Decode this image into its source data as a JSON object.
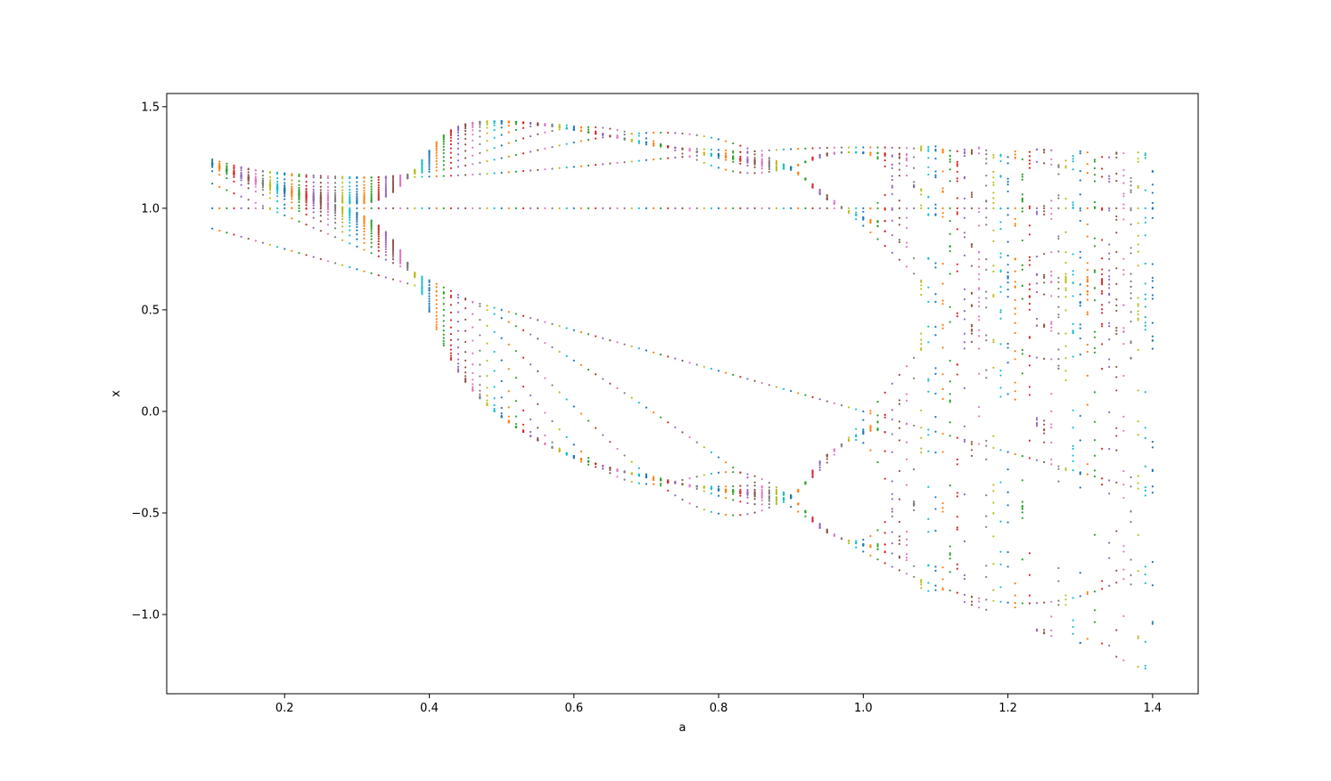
{
  "chart_data": {
    "type": "scatter",
    "title": "",
    "xlabel": "a",
    "ylabel": "x",
    "xlim": [
      0.037,
      1.463
    ],
    "ylim": [
      -1.39,
      1.565
    ],
    "grid": false,
    "legend": "none",
    "x_ticks": [
      0.2,
      0.4,
      0.6,
      0.8,
      1.0,
      1.2,
      1.4
    ],
    "x_tick_labels": [
      "0.2",
      "0.4",
      "0.6",
      "0.8",
      "1.0",
      "1.2",
      "1.4"
    ],
    "y_ticks": [
      -1.0,
      -0.5,
      0.0,
      0.5,
      1.0,
      1.5
    ],
    "y_tick_labels": [
      "−1.0",
      "−0.5",
      "0.0",
      "0.5",
      "1.0",
      "1.5"
    ],
    "a_range": [
      0.1,
      1.4
    ],
    "a_step": 0.01,
    "series_note": "one series per value of a, colored by cycling the default palette",
    "palette": [
      "#1f77b4",
      "#ff7f0e",
      "#2ca02c",
      "#d62728",
      "#9467bd",
      "#8c564b",
      "#e377c2",
      "#7f7f7f",
      "#bcbd22",
      "#17becf"
    ],
    "iteration_map": "x_{n+1} = 1 - a x_n^2 + y_n; y_{n+1} = 0.3 x_n",
    "points_per_value": 30
  }
}
